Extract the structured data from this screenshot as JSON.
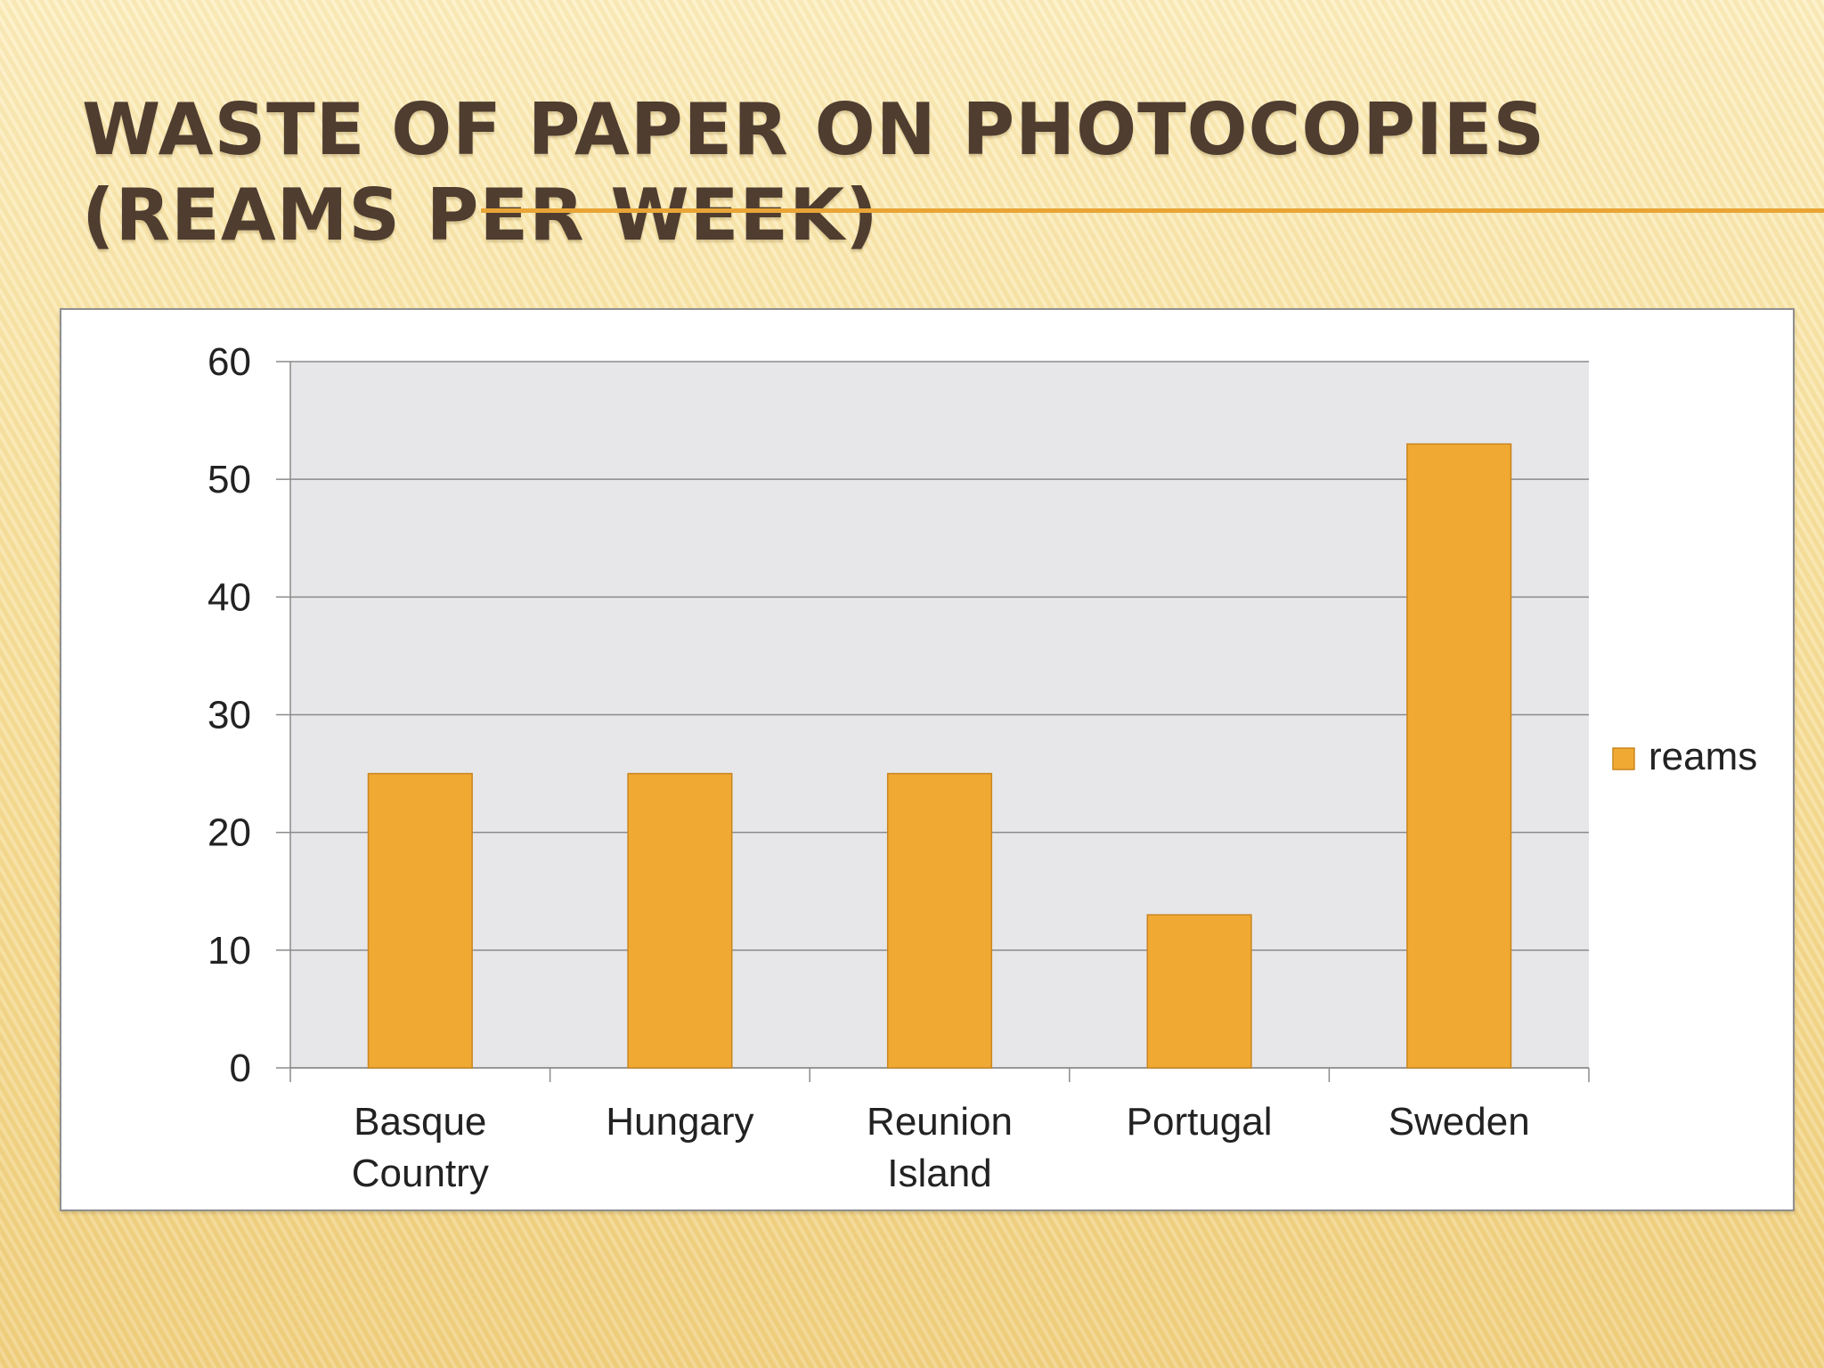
{
  "slide": {
    "title": "WASTE OF PAPER ON PHOTOCOPIES (REAMS PER WEEK)"
  },
  "colors": {
    "bar": "#f0a932",
    "bar_stroke": "#c9851e",
    "plot_bg": "#e7e7ea",
    "gridline": "#8a8a8a"
  },
  "chart_data": {
    "type": "bar",
    "title": "",
    "xlabel": "",
    "ylabel": "",
    "categories": [
      "Basque Country",
      "Hungary",
      "Reunion Island",
      "Portugal",
      "Sweden"
    ],
    "category_lines": [
      [
        "Basque",
        "Country"
      ],
      [
        "Hungary"
      ],
      [
        "Reunion",
        "Island"
      ],
      [
        "Portugal"
      ],
      [
        "Sweden"
      ]
    ],
    "series": [
      {
        "name": "reams",
        "values": [
          25,
          25,
          25,
          13,
          53
        ]
      }
    ],
    "ylim": [
      0,
      60
    ],
    "yticks": [
      0,
      10,
      20,
      30,
      40,
      50,
      60
    ],
    "grid": true,
    "legend": "right"
  }
}
